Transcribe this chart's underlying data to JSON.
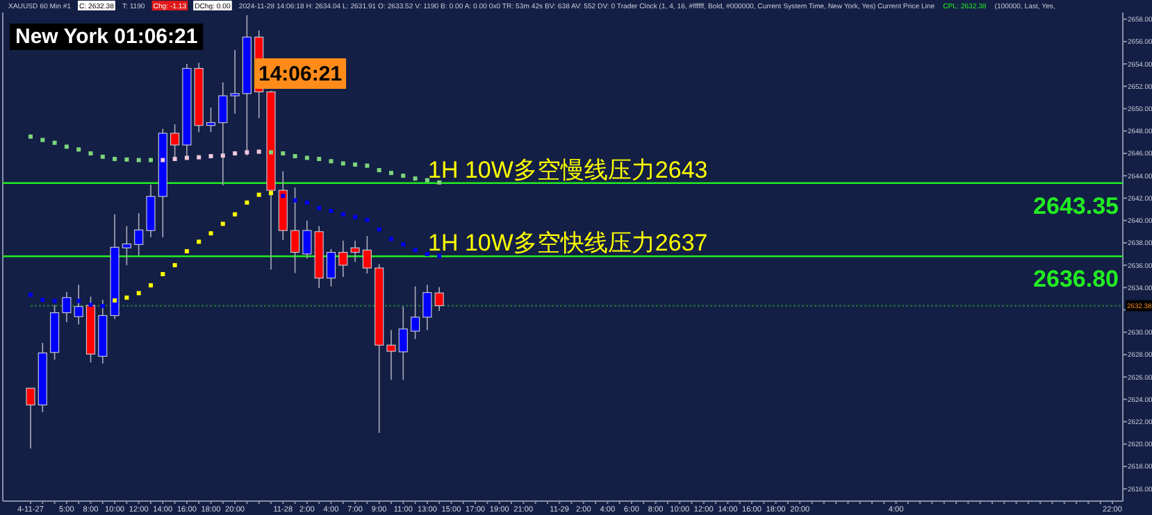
{
  "chart_data": {
    "type": "candlestick",
    "categories": [
      "4-11-27",
      null,
      null,
      "5:00",
      null,
      "8:00",
      null,
      "10:00",
      null,
      "12:00",
      null,
      "14:00",
      null,
      "16:00",
      null,
      "18:00",
      null,
      "20:00",
      null,
      null,
      null,
      "11-28",
      null,
      "2:00",
      null,
      "4:00",
      null,
      "7:00",
      null,
      "9:00",
      null,
      "11:00",
      null,
      "13:00",
      null,
      "15:00",
      null,
      "17:00",
      null,
      "19:00",
      null,
      "21:00",
      null,
      null,
      "11-29",
      null,
      "2:00",
      null,
      "4:00",
      null,
      "6:00",
      null,
      "8:00",
      null,
      "10:00",
      null,
      "12:00",
      null,
      "14:00",
      null,
      "16:00",
      null,
      "18:00",
      null,
      "20:00",
      null,
      null,
      null,
      null,
      null,
      null,
      null,
      "4:00",
      null,
      null,
      null,
      null,
      null,
      null,
      null,
      null,
      null,
      null,
      null,
      null,
      null,
      null,
      null,
      null,
      null,
      "22:00"
    ],
    "ohlc": [
      [
        2625.0,
        2625.0,
        2619.6,
        2623.5
      ],
      [
        2623.5,
        2629.05,
        2622.85,
        2628.15
      ],
      [
        2628.2,
        2632.45,
        2627.55,
        2631.75
      ],
      [
        2631.75,
        2633.6,
        2630.9,
        2633.1
      ],
      [
        2631.4,
        2634.25,
        2630.7,
        2632.3
      ],
      [
        2632.4,
        2633.2,
        2627.3,
        2628.05
      ],
      [
        2627.85,
        2632.9,
        2627.2,
        2631.5
      ],
      [
        2631.5,
        2640.55,
        2631.2,
        2637.6
      ],
      [
        2637.55,
        2639.5,
        2636.0,
        2637.9
      ],
      [
        2637.85,
        2640.65,
        2636.85,
        2639.15
      ],
      [
        2639.1,
        2643.2,
        2638.5,
        2642.15
      ],
      [
        2642.15,
        2648.2,
        2638.5,
        2647.8
      ],
      [
        2647.8,
        2648.6,
        2645.6,
        2646.75
      ],
      [
        2646.75,
        2654.0,
        2645.6,
        2653.6
      ],
      [
        2653.6,
        2654.1,
        2647.9,
        2648.5
      ],
      [
        2648.5,
        2650.1,
        2647.9,
        2648.75
      ],
      [
        2648.75,
        2652.35,
        2643.15,
        2651.15
      ],
      [
        2651.15,
        2655.25,
        2649.55,
        2651.35
      ],
      [
        2651.35,
        2658.35,
        2645.8,
        2656.4
      ],
      [
        2656.4,
        2657.0,
        2649.15,
        2651.5
      ],
      [
        2651.5,
        2651.6,
        2635.6,
        2642.7
      ],
      [
        2642.7,
        2644.4,
        2638.25,
        2639.1
      ],
      [
        2639.1,
        2642.95,
        2635.3,
        2637.15
      ],
      [
        2637.0,
        2640.0,
        2636.6,
        2639.1
      ],
      [
        2639.0,
        2639.5,
        2633.95,
        2634.85
      ],
      [
        2634.85,
        2637.45,
        2634.1,
        2637.15
      ],
      [
        2637.15,
        2638.2,
        2634.95,
        2636.0
      ],
      [
        2637.55,
        2638.2,
        2636.3,
        2637.15
      ],
      [
        2637.35,
        2638.6,
        2635.25,
        2635.75
      ],
      [
        2635.75,
        2636.1,
        2621.0,
        2628.85
      ],
      [
        2628.85,
        2630.2,
        2625.75,
        2628.3
      ],
      [
        2628.25,
        2632.3,
        2625.75,
        2630.3
      ],
      [
        2630.1,
        2634.1,
        2629.4,
        2631.35
      ],
      [
        2631.35,
        2634.25,
        2630.2,
        2633.55
      ],
      [
        2633.52,
        2634.04,
        2631.91,
        2632.38
      ],
      null,
      null,
      null,
      null,
      null,
      null,
      null,
      null,
      null,
      null,
      null,
      null,
      null,
      null,
      null,
      null,
      null,
      null,
      null,
      null,
      null,
      null,
      null,
      null,
      null,
      null,
      null,
      null,
      null,
      null,
      null,
      null,
      null,
      null,
      null,
      null,
      null,
      null,
      null,
      null,
      null,
      null,
      null,
      null,
      null,
      null,
      null,
      null,
      null,
      null,
      null,
      null,
      null,
      null,
      null,
      null
    ],
    "series": [
      {
        "type": "scatter",
        "color": "#7cd67c",
        "values": [
          2647.5,
          2647.2,
          2646.95,
          2646.6,
          2646.35,
          2646.0,
          2645.7,
          2645.5,
          2645.45,
          2645.4,
          2645.4,
          null,
          null,
          null,
          null,
          null,
          null,
          null,
          null,
          null,
          2646.1,
          2646.0,
          2645.75,
          2645.6,
          2645.5,
          2645.3,
          2645.1,
          2645.0,
          2644.9,
          2644.5,
          2644.25,
          2644.0,
          2643.75,
          2643.6,
          2643.4,
          null,
          null,
          null,
          null,
          null,
          null,
          null,
          null,
          null,
          null,
          null,
          null,
          null,
          null,
          null,
          null,
          null,
          null,
          null,
          null,
          null,
          null,
          null,
          null,
          null,
          null,
          null,
          null,
          null,
          null,
          null,
          null,
          null,
          null,
          null,
          null,
          null,
          null,
          null,
          null,
          null,
          null,
          null,
          null,
          null,
          null,
          null,
          null,
          null,
          null,
          null,
          null,
          null,
          null,
          null,
          null
        ]
      },
      {
        "type": "scatter",
        "color": "#f0c8dc",
        "values": [
          null,
          null,
          null,
          null,
          null,
          null,
          null,
          null,
          null,
          null,
          null,
          2645.4,
          2645.5,
          2645.6,
          2645.65,
          2645.75,
          2645.8,
          2646.0,
          2646.1,
          2646.15,
          null,
          null,
          null,
          null,
          null,
          null,
          null,
          null,
          null,
          null,
          null,
          null,
          null,
          null,
          null,
          null,
          null,
          null,
          null,
          null,
          null,
          null,
          null,
          null,
          null,
          null,
          null,
          null,
          null,
          null,
          null,
          null,
          null,
          null,
          null,
          null,
          null,
          null,
          null,
          null,
          null,
          null,
          null,
          null,
          null,
          null,
          null,
          null,
          null,
          null,
          null,
          null,
          null,
          null,
          null,
          null,
          null,
          null,
          null,
          null,
          null,
          null,
          null,
          null,
          null,
          null,
          null,
          null,
          null,
          null,
          null
        ]
      },
      {
        "type": "scatter",
        "color": "#ffff00",
        "values": [
          null,
          null,
          null,
          null,
          null,
          null,
          null,
          2632.85,
          2633.1,
          2633.5,
          2634.2,
          2635.2,
          2636.0,
          2637.25,
          2638.1,
          2638.85,
          2639.7,
          2640.55,
          2641.6,
          2642.3,
          2642.45,
          null,
          null,
          null,
          null,
          null,
          null,
          null,
          null,
          null,
          null,
          null,
          null,
          null,
          null,
          null,
          null,
          null,
          null,
          null,
          null,
          null,
          null,
          null,
          null,
          null,
          null,
          null,
          null,
          null,
          null,
          null,
          null,
          null,
          null,
          null,
          null,
          null,
          null,
          null,
          null,
          null,
          null,
          null,
          null,
          null,
          null,
          null,
          null,
          null,
          null,
          null,
          null,
          null,
          null,
          null,
          null,
          null,
          null,
          null,
          null,
          null,
          null,
          null,
          null,
          null,
          null,
          null,
          null,
          null,
          null
        ]
      },
      {
        "type": "scatter",
        "color": "#0000ee",
        "values": [
          2633.35,
          2632.9,
          2632.8,
          2632.85,
          2632.8,
          2632.45,
          2632.35,
          null,
          null,
          null,
          null,
          null,
          null,
          null,
          null,
          null,
          null,
          null,
          null,
          null,
          null,
          2642.2,
          2641.8,
          2641.6,
          2641.1,
          2640.85,
          2640.55,
          2640.3,
          2640.05,
          2639.2,
          2638.35,
          2637.85,
          2637.35,
          2637.0,
          2636.85,
          null,
          null,
          null,
          null,
          null,
          null,
          null,
          null,
          null,
          null,
          null,
          null,
          null,
          null,
          null,
          null,
          null,
          null,
          null,
          null,
          null,
          null,
          null,
          null,
          null,
          null,
          null,
          null,
          null,
          null,
          null,
          null,
          null,
          null,
          null,
          null,
          null,
          null,
          null,
          null,
          null,
          null,
          null,
          null,
          null,
          null,
          null,
          null,
          null,
          null,
          null,
          null,
          null,
          null,
          null,
          null
        ]
      }
    ],
    "marker": "square",
    "ylim": [
      2614.9,
      2658.6
    ],
    "yticks": [
      {
        "value": 2616,
        "label": "2616.00"
      },
      {
        "value": 2618,
        "label": "2618.00"
      },
      {
        "value": 2620,
        "label": "2620.00"
      },
      {
        "value": 2622,
        "label": "2622.00"
      },
      {
        "value": 2624,
        "label": "2624.00"
      },
      {
        "value": 2626,
        "label": "2626.00"
      },
      {
        "value": 2628,
        "label": "2628.00"
      },
      {
        "value": 2630,
        "label": "2630.00"
      },
      {
        "value": 2632,
        "label": null
      },
      {
        "value": 2634,
        "label": "2634.00"
      },
      {
        "value": 2636,
        "label": "2636.00"
      },
      {
        "value": 2638,
        "label": "2638.00"
      },
      {
        "value": 2640,
        "label": "2640.00"
      },
      {
        "value": 2642,
        "label": "2642.00"
      },
      {
        "value": 2644,
        "label": "2644.00"
      },
      {
        "value": 2646,
        "label": "2646.00"
      },
      {
        "value": 2648,
        "label": "2648.00"
      },
      {
        "value": 2650,
        "label": "2650.00"
      },
      {
        "value": 2652,
        "label": "2652.00"
      },
      {
        "value": 2654,
        "label": "2654.00"
      },
      {
        "value": 2656,
        "label": "2656.00"
      },
      {
        "value": 2658,
        "label": "2658.00"
      }
    ],
    "ref_lines": [
      {
        "axis": "y",
        "value": 2643.35,
        "label": "2643.35",
        "color": "#22ee22"
      },
      {
        "axis": "y",
        "value": 2636.8,
        "label": "2636.80",
        "color": "#22ee22"
      },
      {
        "axis": "y",
        "value": 2632.38,
        "label": "2632.38",
        "color": "#1e7a3c",
        "line_style": "dotted"
      }
    ],
    "annotations": [
      "XAUUSD 60 Min #1",
      "C: 2632.38",
      "T: 1190",
      "Chg: -1.13",
      "DChg: 0.00",
      "2024-11-28 14:06:18 H: 2634.04 L: 2631.91 O: 2633.52 V: 1190 B: 0.00 A: 0.00 0x0 TR: 53m 42s BV: 638 AV: 552 DV: 0 Trader Clock (1, 4, 16, #ffffff, Bold, #000000, Current System Time, New York, Yes) Current Price Line",
      "CPL: 2632.38",
      "(100000, Last, Yes,",
      "New York 01:06:21",
      "14:06:21",
      {
        "text": "1H 10W多空慢线压力2643",
        "y": 2643.35
      },
      {
        "text": "1H 10W多空快线压力2637",
        "y": 2636.8
      }
    ]
  }
}
